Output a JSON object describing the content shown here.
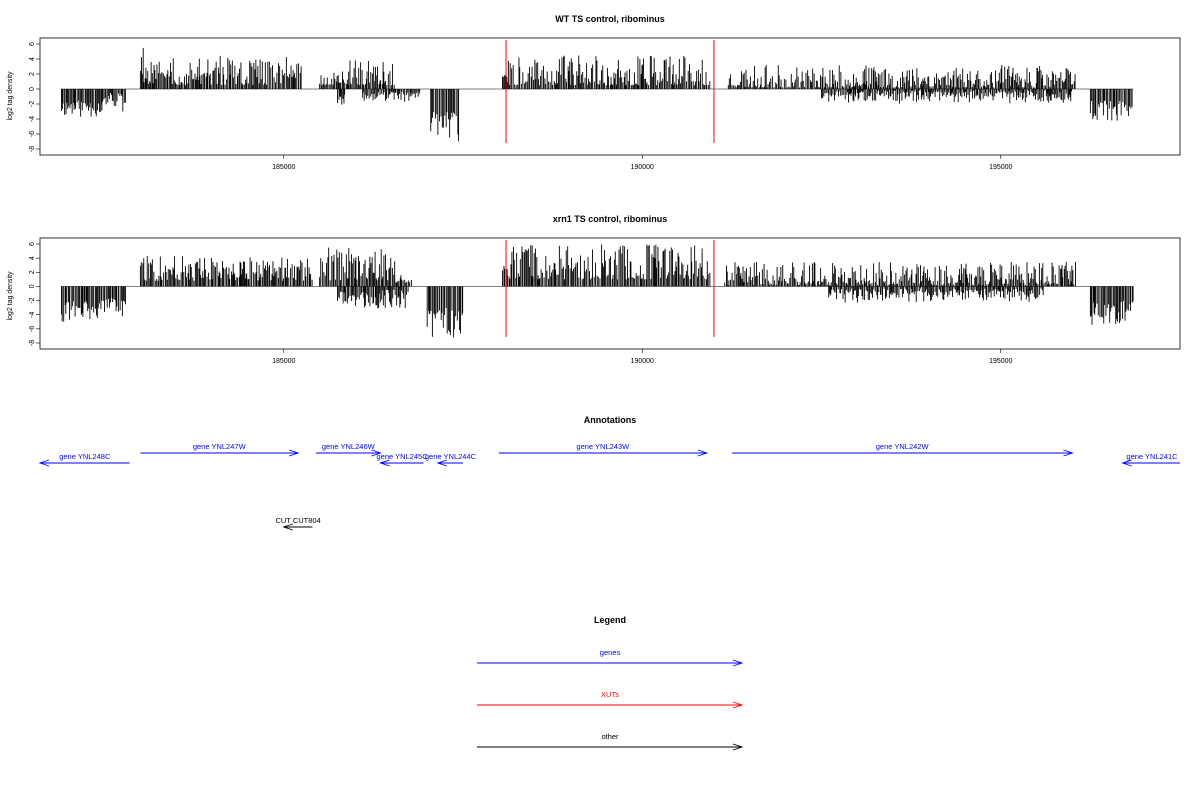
{
  "chart_data": [
    {
      "type": "bar",
      "title": "WT TS control, ribominus",
      "ylabel": "log2 tag density",
      "xlabel": "",
      "xlim": [
        181600,
        197500
      ],
      "ylim": [
        -8,
        6
      ],
      "yticks": [
        6,
        4,
        2,
        0,
        -2,
        -4,
        -6,
        -8
      ],
      "xticks": [
        185000,
        190000,
        195000
      ],
      "marker_lines": [
        188100,
        191000
      ],
      "profile": [
        {
          "start": 181900,
          "end": 182450,
          "min": -4.0,
          "max": -1.5,
          "seed": 11
        },
        {
          "start": 182450,
          "end": 182800,
          "min": -3.2,
          "max": -0.5,
          "seed": 12
        },
        {
          "start": 183000,
          "end": 183050,
          "min": 2.0,
          "max": 5.8,
          "seed": 13
        },
        {
          "start": 183050,
          "end": 185050,
          "min": 0.5,
          "max": 4.5,
          "seed": 14
        },
        {
          "start": 185050,
          "end": 185250,
          "min": 1.5,
          "max": 3.8,
          "seed": 15
        },
        {
          "start": 185500,
          "end": 185850,
          "min": 0.5,
          "max": 2.5,
          "seed": 16
        },
        {
          "start": 185750,
          "end": 185850,
          "min": -2.8,
          "max": -0.6,
          "seed": 17
        },
        {
          "start": 185850,
          "end": 186550,
          "min": 0.5,
          "max": 4.0,
          "seed": 18
        },
        {
          "start": 186100,
          "end": 186900,
          "min": -1.8,
          "max": -0.3,
          "seed": 19
        },
        {
          "start": 187050,
          "end": 187450,
          "min": -7.6,
          "max": -3.0,
          "seed": 20
        },
        {
          "start": 188050,
          "end": 188120,
          "min": 1.5,
          "max": 3.0,
          "seed": 21
        },
        {
          "start": 188120,
          "end": 190950,
          "min": 0.5,
          "max": 4.5,
          "seed": 22
        },
        {
          "start": 191200,
          "end": 196050,
          "min": 0.2,
          "max": 3.2,
          "seed": 23
        },
        {
          "start": 192500,
          "end": 196000,
          "min": -2.0,
          "max": -0.2,
          "seed": 24
        },
        {
          "start": 196250,
          "end": 196850,
          "min": -4.5,
          "max": -1.5,
          "seed": 25
        }
      ]
    },
    {
      "type": "bar",
      "title": "xrn1 TS control, ribominus",
      "ylabel": "log2 tag density",
      "xlabel": "",
      "xlim": [
        181600,
        197500
      ],
      "ylim": [
        -8,
        6
      ],
      "yticks": [
        6,
        4,
        2,
        0,
        -2,
        -4,
        -6,
        -8
      ],
      "xticks": [
        185000,
        190000,
        195000
      ],
      "marker_lines": [
        188100,
        191000
      ],
      "profile": [
        {
          "start": 181900,
          "end": 182450,
          "min": -5.5,
          "max": -2.0,
          "seed": 31
        },
        {
          "start": 182450,
          "end": 182800,
          "min": -4.5,
          "max": -1.5,
          "seed": 32
        },
        {
          "start": 183000,
          "end": 183050,
          "min": 2.5,
          "max": 6.2,
          "seed": 33
        },
        {
          "start": 183050,
          "end": 185400,
          "min": 0.8,
          "max": 4.3,
          "seed": 34
        },
        {
          "start": 185500,
          "end": 186550,
          "min": 0.8,
          "max": 5.5,
          "seed": 35
        },
        {
          "start": 185750,
          "end": 186750,
          "min": -3.2,
          "max": -0.5,
          "seed": 36
        },
        {
          "start": 186550,
          "end": 186800,
          "min": 0.5,
          "max": 2.2,
          "seed": 37
        },
        {
          "start": 187000,
          "end": 187500,
          "min": -7.8,
          "max": -3.0,
          "seed": 38
        },
        {
          "start": 188050,
          "end": 188120,
          "min": 2.0,
          "max": 4.5,
          "seed": 39
        },
        {
          "start": 188120,
          "end": 190950,
          "min": 1.0,
          "max": 6.0,
          "seed": 40
        },
        {
          "start": 191150,
          "end": 196050,
          "min": 0.2,
          "max": 3.5,
          "seed": 41
        },
        {
          "start": 192600,
          "end": 195600,
          "min": -2.5,
          "max": -0.3,
          "seed": 42
        },
        {
          "start": 196250,
          "end": 196850,
          "min": -6.0,
          "max": -2.0,
          "seed": 43
        }
      ]
    }
  ],
  "annotations": {
    "title": "Annotations",
    "items": [
      {
        "label": "gene YNL248C",
        "start": 182850,
        "end": 181600,
        "row": 1,
        "color": "#0000ff"
      },
      {
        "label": "gene YNL247W",
        "start": 183000,
        "end": 185200,
        "row": 0,
        "color": "#0000ff"
      },
      {
        "label": "gene YNL246W",
        "start": 185450,
        "end": 186350,
        "row": 0,
        "color": "#0000ff"
      },
      {
        "label": "gene YNL245C",
        "start": 186950,
        "end": 186350,
        "row": 1,
        "color": "#0000ff"
      },
      {
        "label": "gene YNL244C",
        "start": 187500,
        "end": 187150,
        "row": 1,
        "color": "#0000ff"
      },
      {
        "label": "gene YNL243W",
        "start": 188000,
        "end": 190900,
        "row": 0,
        "color": "#0000ff"
      },
      {
        "label": "gene YNL242W",
        "start": 191250,
        "end": 196000,
        "row": 0,
        "color": "#0000ff"
      },
      {
        "label": "gene YNL241C",
        "start": 197500,
        "end": 196700,
        "row": 1,
        "color": "#0000ff"
      },
      {
        "label": "CUT CUT804",
        "start": 185400,
        "end": 185000,
        "row": 2,
        "color": "#000000"
      }
    ]
  },
  "legend": {
    "title": "Legend",
    "items": [
      {
        "label": "genes",
        "color": "#0000ff"
      },
      {
        "label": "XUTs",
        "color": "#ff0000"
      },
      {
        "label": "other",
        "color": "#000000"
      }
    ]
  }
}
